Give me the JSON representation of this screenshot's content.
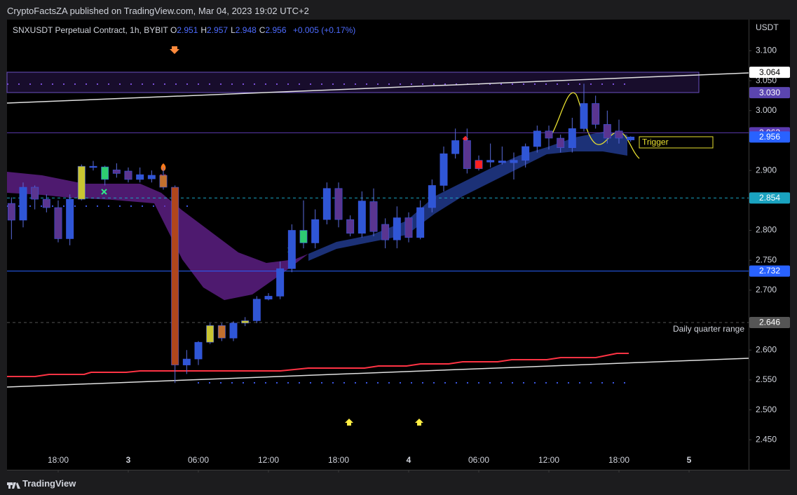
{
  "header": {
    "published": "CryptoFactsZA published on TradingView.com, Mar 04, 2023 19:02 UTC+2"
  },
  "footer": {
    "brand": "TradingView"
  },
  "chart_data": {
    "type": "candlestick",
    "title": "SNXUSDT Perpetual Contract, 1h, BYBIT",
    "legend": {
      "labels": [
        "O",
        "H",
        "L",
        "C"
      ],
      "values": [
        2.951,
        2.957,
        2.948,
        2.956
      ],
      "change": "+0.005 (+0.17%)"
    },
    "y_axis_label": "USDT",
    "x": [
      -10,
      -9,
      -8,
      -7,
      -6,
      -5,
      -4,
      -3,
      -2,
      -1,
      0,
      1,
      2,
      3,
      4,
      5,
      6,
      7,
      8,
      9,
      10,
      11,
      12,
      13,
      14,
      15,
      16,
      17,
      18,
      19,
      20,
      21,
      22,
      23,
      24,
      25,
      26,
      27,
      28,
      29,
      30,
      31,
      32,
      33,
      34,
      35,
      36,
      37,
      38,
      39,
      40,
      41,
      42,
      43
    ],
    "open": [
      2.845,
      2.817,
      2.872,
      2.852,
      2.838,
      2.786,
      2.852,
      2.905,
      2.885,
      2.901,
      2.899,
      2.885,
      2.886,
      2.892,
      2.872,
      2.575,
      2.585,
      2.613,
      2.641,
      2.62,
      2.645,
      2.649,
      2.685,
      2.69,
      2.736,
      2.779,
      2.779,
      2.818,
      2.87,
      2.818,
      2.795,
      2.848,
      2.81,
      2.784,
      2.821,
      2.788,
      2.838,
      2.875,
      2.928,
      2.95,
      2.917,
      2.914,
      2.913,
      2.913,
      2.917,
      2.94,
      2.966,
      2.954,
      2.938,
      2.97,
      3.012,
      2.977,
      2.966,
      2.951
    ],
    "high": [
      2.855,
      2.88,
      2.875,
      2.86,
      2.85,
      2.86,
      2.91,
      2.916,
      2.908,
      2.912,
      2.905,
      2.905,
      2.9,
      2.905,
      2.875,
      2.6,
      2.615,
      2.645,
      2.645,
      2.648,
      2.655,
      2.69,
      2.695,
      2.748,
      2.81,
      2.85,
      2.835,
      2.88,
      2.88,
      2.825,
      2.865,
      2.87,
      2.82,
      2.84,
      2.83,
      2.85,
      2.885,
      2.94,
      2.97,
      2.97,
      2.925,
      2.945,
      2.94,
      2.93,
      2.945,
      2.975,
      2.975,
      2.96,
      2.988,
      3.045,
      3.025,
      3.0,
      2.985,
      2.957
    ],
    "low": [
      2.785,
      2.805,
      2.835,
      2.83,
      2.78,
      2.775,
      2.85,
      2.9,
      2.875,
      2.888,
      2.88,
      2.88,
      2.88,
      2.868,
      2.545,
      2.56,
      2.575,
      2.61,
      2.615,
      2.615,
      2.64,
      2.645,
      2.683,
      2.685,
      2.73,
      2.77,
      2.77,
      2.81,
      2.805,
      2.79,
      2.788,
      2.79,
      2.77,
      2.77,
      2.78,
      2.785,
      2.83,
      2.865,
      2.92,
      2.895,
      2.9,
      2.905,
      2.91,
      2.885,
      2.905,
      2.93,
      2.935,
      2.93,
      2.93,
      2.965,
      2.97,
      2.945,
      2.945,
      2.948
    ],
    "close": [
      2.817,
      2.872,
      2.852,
      2.838,
      2.786,
      2.852,
      2.907,
      2.907,
      2.906,
      2.895,
      2.885,
      2.893,
      2.892,
      2.872,
      2.575,
      2.585,
      2.613,
      2.641,
      2.62,
      2.645,
      2.649,
      2.685,
      2.69,
      2.736,
      2.8,
      2.8,
      2.818,
      2.87,
      2.818,
      2.795,
      2.849,
      2.798,
      2.784,
      2.821,
      2.788,
      2.838,
      2.875,
      2.928,
      2.95,
      2.903,
      2.903,
      2.917,
      2.916,
      2.917,
      2.94,
      2.966,
      2.954,
      2.938,
      2.97,
      3.012,
      2.977,
      2.954,
      2.954,
      2.956
    ],
    "colors": [
      "#5a3590",
      "#2f56d6",
      "#5a3590",
      "#5a3590",
      "#5a3590",
      "#2f56d6",
      "#c9c531",
      "#2f56d6",
      "#2ecc71",
      "#5a3590",
      "#5a3590",
      "#2f56d6",
      "#2f56d6",
      "#c2702e",
      "#b0461c",
      "#2f56d6",
      "#2f56d6",
      "#c9c531",
      "#c2702e",
      "#2f56d6",
      "#c9c531",
      "#2f56d6",
      "#2f56d6",
      "#2f56d6",
      "#2f56d6",
      "#2ecc71",
      "#2f56d6",
      "#2f56d6",
      "#5a3590",
      "#5a3590",
      "#2f56d6",
      "#5a3590",
      "#5a3590",
      "#2f56d6",
      "#5a3590",
      "#2f56d6",
      "#2f56d6",
      "#2f56d6",
      "#2f56d6",
      "#5a3590",
      "#ff2020",
      "#2f56d6",
      "#2f56d6",
      "#2f56d6",
      "#2f56d6",
      "#2f56d6",
      "#5a3590",
      "#5a3590",
      "#2f56d6",
      "#2f56d6",
      "#5a3590",
      "#5a3590",
      "#5a3590",
      "#2f56d6"
    ],
    "wick_color": "#5a6bdc",
    "xlim": [
      -10.38,
      53.1
    ],
    "ylim": [
      2.4,
      3.152
    ],
    "xticks": [
      {
        "value": -6,
        "label": "18:00"
      },
      {
        "value": 0,
        "label": "3"
      },
      {
        "value": 6,
        "label": "06:00"
      },
      {
        "value": 12,
        "label": "12:00"
      },
      {
        "value": 18,
        "label": "18:00"
      },
      {
        "value": 24,
        "label": "4"
      },
      {
        "value": 30,
        "label": "06:00"
      },
      {
        "value": 36,
        "label": "12:00"
      },
      {
        "value": 42,
        "label": "18:00"
      },
      {
        "value": 48,
        "label": "5"
      }
    ],
    "yticks": [
      {
        "value": 3.1,
        "label": "3.100"
      },
      {
        "value": 3.05,
        "label": "3.050"
      },
      {
        "value": 3.0,
        "label": "3.000"
      },
      {
        "value": 2.9,
        "label": "2.900"
      },
      {
        "value": 2.8,
        "label": "2.800"
      },
      {
        "value": 2.75,
        "label": "2.750"
      },
      {
        "value": 2.7,
        "label": "2.700"
      },
      {
        "value": 2.6,
        "label": "2.600"
      },
      {
        "value": 2.55,
        "label": "2.550"
      },
      {
        "value": 2.5,
        "label": "2.500"
      },
      {
        "value": 2.45,
        "label": "2.450"
      }
    ],
    "grid": false,
    "levels": [
      {
        "value": 3.064,
        "color": "#ffffff",
        "text_color": "#000000",
        "style": "none"
      },
      {
        "value": 3.03,
        "label": "3.030",
        "color": "#5b45b0",
        "text_color": "#ffffff",
        "style": "none"
      },
      {
        "value": 2.963,
        "color": "#5b3ab0",
        "text_color": "#ffffff",
        "style": "solid"
      },
      {
        "value": 2.956,
        "color": "#2962ff",
        "text_color": "#ffffff",
        "style": "none"
      },
      {
        "value": 2.854,
        "color": "#1aa3c0",
        "text_color": "#ffffff",
        "style": "dashed"
      },
      {
        "value": 2.732,
        "color": "#2962ff",
        "text_color": "#ffffff",
        "style": "solid"
      },
      {
        "value": 2.646,
        "color": "#555555",
        "text_color": "#ffffff",
        "style": "dashed"
      }
    ],
    "annotations": [
      "Trigger",
      "Daily quarter range"
    ]
  }
}
